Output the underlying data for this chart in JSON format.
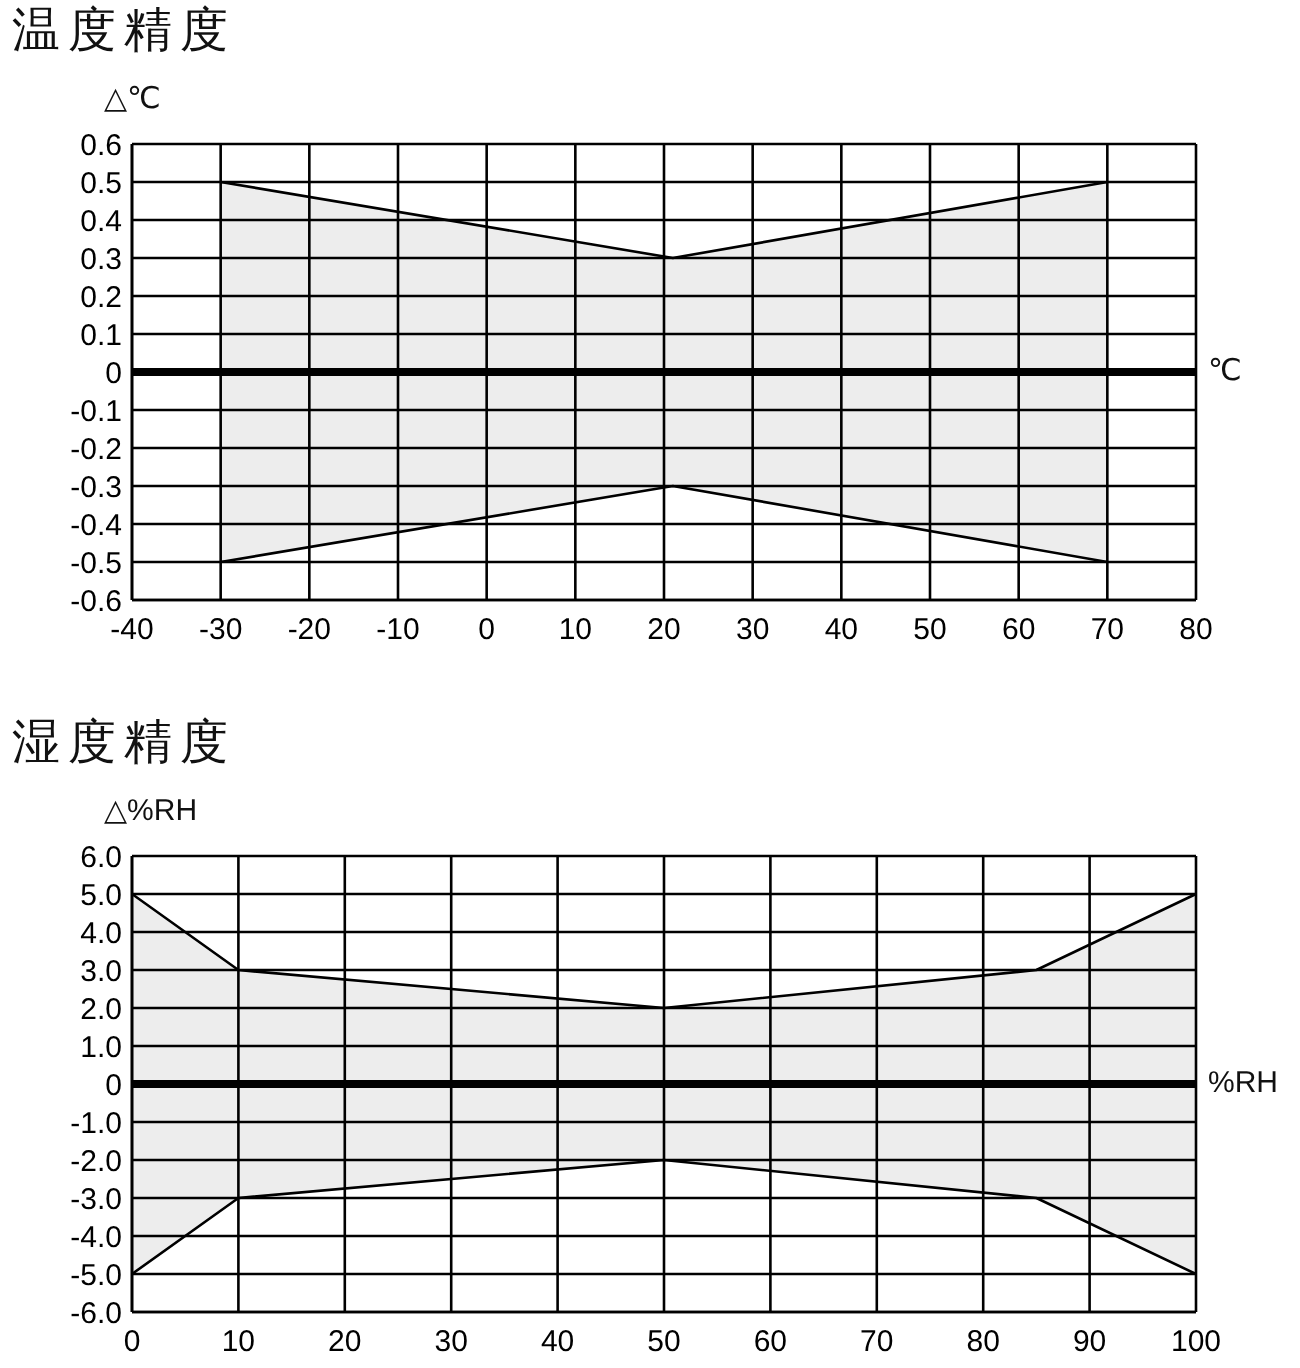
{
  "chart_data": [
    {
      "type": "area",
      "title": "温度精度",
      "ylabel": "△℃",
      "xlabel": "℃",
      "x": [
        -30,
        21,
        70
      ],
      "series": [
        {
          "color": "#000000",
          "values": [
            0.5,
            0.3,
            0.5
          ]
        },
        {
          "color": "#000000",
          "values": [
            -0.5,
            -0.3,
            -0.5
          ]
        }
      ],
      "xlim": [
        -40,
        80
      ],
      "xticks": [
        -40,
        -30,
        -20,
        -10,
        0,
        10,
        20,
        30,
        40,
        50,
        60,
        70,
        80
      ],
      "ylim": [
        -0.6,
        0.6
      ],
      "yticks": [
        0.6,
        0.5,
        0.4,
        0.3,
        0.2,
        0.1,
        0,
        -0.1,
        -0.2,
        -0.3,
        -0.4,
        -0.5,
        -0.6
      ],
      "grid": true,
      "ref_lines": [
        {
          "axis": "y",
          "value": 0,
          "color": "#000000"
        }
      ]
    },
    {
      "type": "area",
      "title": "湿度精度",
      "ylabel": "△%RH",
      "xlabel": "%RH",
      "x": [
        0,
        10,
        50,
        85,
        100
      ],
      "series": [
        {
          "color": "#000000",
          "values": [
            5,
            3,
            2,
            3,
            5
          ]
        },
        {
          "color": "#000000",
          "values": [
            -5,
            -3,
            -2,
            -3,
            -5
          ]
        }
      ],
      "xlim": [
        0,
        100
      ],
      "xticks": [
        0,
        10,
        20,
        30,
        40,
        50,
        60,
        70,
        80,
        90,
        100
      ],
      "ylim": [
        -6,
        6
      ],
      "yticks": [
        {
          "value": 6,
          "label": "6.0"
        },
        {
          "value": 5,
          "label": "5.0"
        },
        {
          "value": 4,
          "label": "4.0"
        },
        {
          "value": 3,
          "label": "3.0"
        },
        {
          "value": 2,
          "label": "2.0"
        },
        {
          "value": 1,
          "label": "1.0"
        },
        0,
        {
          "value": -1,
          "label": "-1.0"
        },
        {
          "value": -2,
          "label": "-2.0"
        },
        {
          "value": -3,
          "label": "-3.0"
        },
        {
          "value": -4,
          "label": "-4.0"
        },
        {
          "value": -5,
          "label": "-5.0"
        },
        {
          "value": -6,
          "label": "-6.0"
        }
      ],
      "grid": true,
      "ref_lines": [
        {
          "axis": "y",
          "value": 0,
          "color": "#000000"
        }
      ]
    }
  ]
}
